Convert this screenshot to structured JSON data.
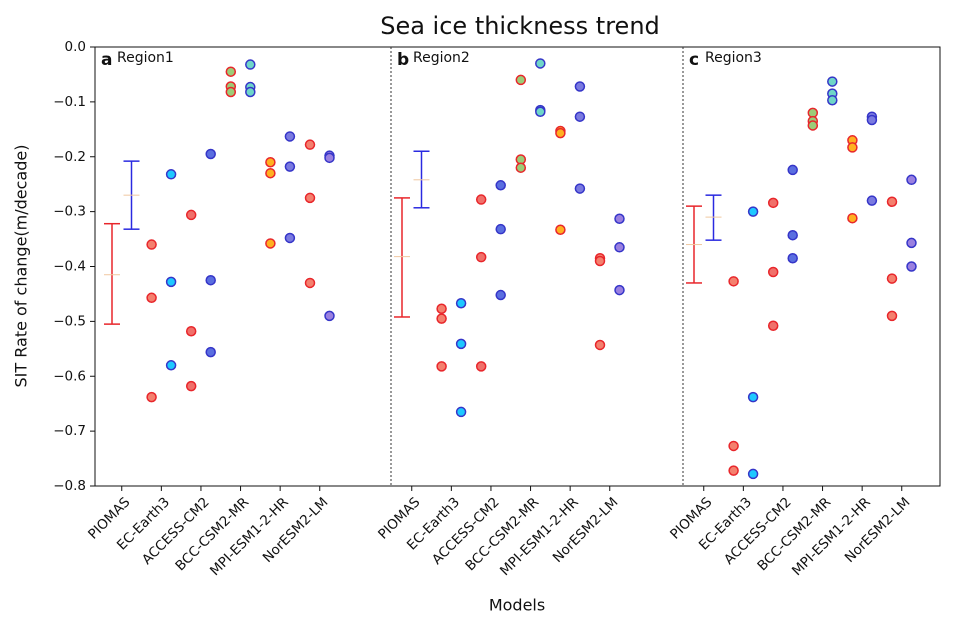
{
  "chart_data": {
    "type": "dotplot",
    "title": "Sea ice thickness trend",
    "xlabel": "Models",
    "ylabel": "SIT Rate of change(m/decade)",
    "ylim": [
      -0.8,
      0
    ],
    "yticks": [
      {
        "value": 0,
        "label": "0.0"
      },
      {
        "value": -0.1,
        "label": "−0.1"
      },
      {
        "value": -0.2,
        "label": "−0.2"
      },
      {
        "value": -0.3,
        "label": "−0.3"
      },
      {
        "value": -0.4,
        "label": "−0.4"
      },
      {
        "value": -0.5,
        "label": "−0.5"
      },
      {
        "value": -0.6,
        "label": "−0.6"
      },
      {
        "value": -0.7,
        "label": "−0.7"
      },
      {
        "value": -0.8,
        "label": "−0.8"
      }
    ],
    "categories": [
      "PIOMAS",
      "EC-Earth3",
      "ACCESS-CM2",
      "BCC-CSM2-MR",
      "MPI-ESM1-2-HR",
      "NorESM2-LM"
    ],
    "errorbar_colors": [
      "#e8262b",
      "#2a2ae0"
    ],
    "edge_colors": {
      "left": "#e8262b",
      "right": "#3535c8"
    },
    "point_colors": [
      {
        "left": "#f4806e",
        "right": "#1ec8ff"
      },
      {
        "left": "#f0706a",
        "right": "#5a6ee0"
      },
      {
        "left": "#9ccc78",
        "right": "#6fd6c8"
      },
      {
        "left": "#ffb020",
        "right": "#7a7ae0"
      },
      {
        "left": "#f4806e",
        "right": "#9a80e0"
      }
    ],
    "panels": [
      {
        "letter": "a",
        "region": "Region1",
        "errorbars": [
          {
            "center": -0.415,
            "low": -0.505,
            "high": -0.322
          },
          {
            "center": -0.27,
            "low": -0.332,
            "high": -0.208
          }
        ],
        "models": [
          {
            "left": [
              -0.36,
              -0.457,
              -0.638
            ],
            "right": [
              -0.232,
              -0.428,
              -0.58
            ]
          },
          {
            "left": [
              -0.306,
              -0.518,
              -0.618
            ],
            "right": [
              -0.195,
              -0.425,
              -0.556
            ]
          },
          {
            "left": [
              -0.045,
              -0.072,
              -0.082
            ],
            "right": [
              -0.032,
              -0.073,
              -0.082
            ]
          },
          {
            "left": [
              -0.21,
              -0.23,
              -0.358
            ],
            "right": [
              -0.163,
              -0.218,
              -0.348
            ]
          },
          {
            "left": [
              -0.178,
              -0.275,
              -0.43
            ],
            "right": [
              -0.198,
              -0.202,
              -0.49
            ]
          }
        ]
      },
      {
        "letter": "b",
        "region": "Region2",
        "errorbars": [
          {
            "center": -0.382,
            "low": -0.492,
            "high": -0.275
          },
          {
            "center": -0.242,
            "low": -0.293,
            "high": -0.19
          }
        ],
        "models": [
          {
            "left": [
              -0.477,
              -0.495,
              -0.582
            ],
            "right": [
              -0.467,
              -0.541,
              -0.665
            ]
          },
          {
            "left": [
              -0.278,
              -0.383,
              -0.582
            ],
            "right": [
              -0.252,
              -0.332,
              -0.452
            ]
          },
          {
            "left": [
              -0.06,
              -0.205,
              -0.22
            ],
            "right": [
              -0.03,
              -0.115,
              -0.118
            ]
          },
          {
            "left": [
              -0.153,
              -0.157,
              -0.333
            ],
            "right": [
              -0.072,
              -0.127,
              -0.258
            ]
          },
          {
            "left": [
              -0.385,
              -0.39,
              -0.543
            ],
            "right": [
              -0.313,
              -0.365,
              -0.443
            ]
          }
        ]
      },
      {
        "letter": "c",
        "region": "Region3",
        "errorbars": [
          {
            "center": -0.36,
            "low": -0.43,
            "high": -0.29
          },
          {
            "center": -0.31,
            "low": -0.352,
            "high": -0.27
          }
        ],
        "models": [
          {
            "left": [
              -0.427,
              -0.727,
              -0.772
            ],
            "right": [
              -0.3,
              -0.638,
              -0.778
            ]
          },
          {
            "left": [
              -0.284,
              -0.41,
              -0.508
            ],
            "right": [
              -0.224,
              -0.343,
              -0.385
            ]
          },
          {
            "left": [
              -0.12,
              -0.135,
              -0.143
            ],
            "right": [
              -0.063,
              -0.085,
              -0.097
            ]
          },
          {
            "left": [
              -0.17,
              -0.183,
              -0.312
            ],
            "right": [
              -0.127,
              -0.133,
              -0.28
            ]
          },
          {
            "left": [
              -0.282,
              -0.422,
              -0.49
            ],
            "right": [
              -0.242,
              -0.357,
              -0.4
            ]
          }
        ]
      }
    ]
  }
}
